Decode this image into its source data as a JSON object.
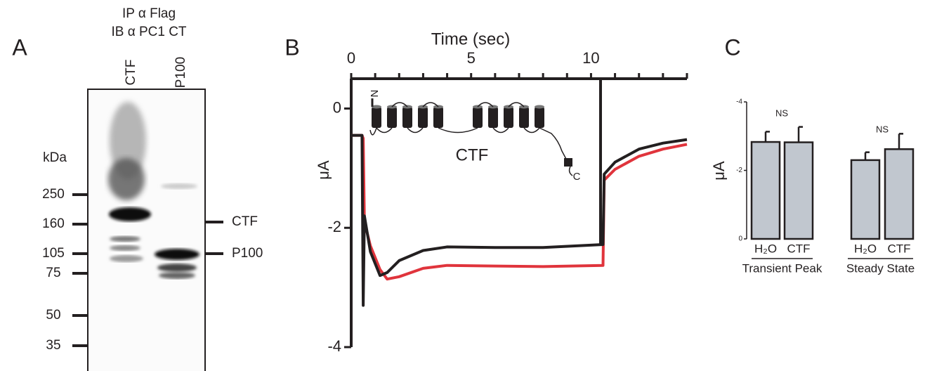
{
  "panel_a": {
    "label": "A",
    "header": [
      "IP α Flag",
      "IB α PC1 CT"
    ],
    "lanes": [
      "CTF",
      "P100"
    ],
    "unit": "kDa",
    "markers": [
      250,
      160,
      105,
      75,
      50,
      35
    ],
    "bands": [
      "CTF",
      "P100"
    ]
  },
  "chart_data": [
    {
      "type": "line",
      "label": "B",
      "x_label": "Time (sec)",
      "y_label": "μA",
      "x": [
        0,
        0.45,
        0.5,
        0.55,
        0.8,
        1.2,
        1.5,
        2,
        3,
        4,
        6,
        8,
        10.5,
        10.55,
        11,
        12,
        13,
        14
      ],
      "xlim": [
        0,
        14
      ],
      "xticks": [
        0,
        5,
        10
      ],
      "xminor_ticks": [
        1,
        2,
        3,
        4,
        6,
        7,
        8,
        9,
        11,
        12,
        13,
        14
      ],
      "ylim": [
        -4,
        0.5
      ],
      "yticks": [
        -4,
        -2,
        0
      ],
      "series": [
        {
          "color": "#e0343c",
          "values": [
            -0.45,
            -0.45,
            -0.5,
            -1.9,
            -2.3,
            -2.7,
            -2.86,
            -2.82,
            -2.68,
            -2.63,
            -2.64,
            -2.65,
            -2.63,
            -1.2,
            -1.02,
            -0.8,
            -0.68,
            -0.6
          ]
        },
        {
          "color": "#231f20",
          "values": [
            -0.45,
            -0.45,
            -3.3,
            -1.8,
            -2.4,
            -2.8,
            -2.75,
            -2.55,
            -2.38,
            -2.32,
            -2.33,
            -2.33,
            -2.28,
            -1.1,
            -0.9,
            -0.68,
            -0.58,
            -0.52
          ]
        }
      ],
      "inset": {
        "label": "CTF",
        "n_term": "N",
        "c_term": "C"
      }
    },
    {
      "type": "bar",
      "label": "C",
      "y_label": "μA",
      "categories": [
        "H₂O",
        "CTF",
        "H₂O",
        "CTF"
      ],
      "groups": [
        "Transient Peak",
        "Steady State"
      ],
      "values": [
        -2.83,
        -2.82,
        -2.3,
        -2.62
      ],
      "errors": [
        0.3,
        0.45,
        0.23,
        0.45
      ],
      "annotations": [
        "NS",
        "NS"
      ],
      "color": "#c1c7cf",
      "ylim": [
        0,
        -4
      ],
      "yticks": [
        -4,
        -2,
        0
      ]
    }
  ]
}
